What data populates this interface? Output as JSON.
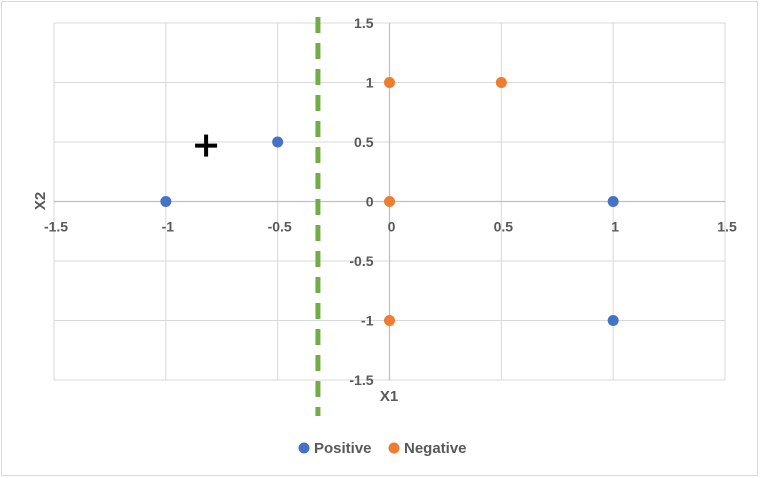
{
  "chart_data": {
    "type": "scatter",
    "xlabel": "X1",
    "ylabel": "X2",
    "xlim": [
      -1.5,
      1.5
    ],
    "ylim": [
      -1.5,
      1.5
    ],
    "grid": true,
    "x_ticks": [
      "-1.5",
      "-1",
      "-0.5",
      "0",
      "0.5",
      "1",
      "1.5"
    ],
    "y_ticks": [
      "1.5",
      "1",
      "0.5",
      "0",
      "-0.5",
      "-1",
      "-1.5"
    ],
    "legend_position": "bottom",
    "series": [
      {
        "name": "Positive",
        "color": "#4472c4",
        "points": [
          [
            -1,
            0
          ],
          [
            -0.5,
            0.5
          ],
          [
            1,
            0
          ],
          [
            1,
            -1
          ]
        ]
      },
      {
        "name": "Negative",
        "color": "#ed7d31",
        "points": [
          [
            0,
            1
          ],
          [
            0.5,
            1
          ],
          [
            0,
            0
          ],
          [
            0,
            -1
          ]
        ]
      }
    ],
    "decision_boundary": {
      "x": -0.32,
      "color": "#70ad47",
      "style": "dashed"
    },
    "query_marker": {
      "symbol": "+",
      "x": -0.82,
      "y": 0.47,
      "color": "#000000"
    }
  }
}
